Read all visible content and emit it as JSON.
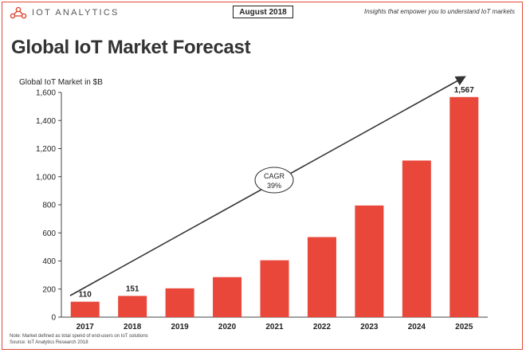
{
  "brand": {
    "name": "IOT ANALYTICS",
    "logo_icon": "network-nodes-icon"
  },
  "header": {
    "date_badge": "August 2018",
    "tagline": "Insights that empower you to understand IoT markets"
  },
  "title": "Global IoT Market Forecast",
  "notes": {
    "line1": "Note: Market defined as total spend of end-users on IoT solutions",
    "line2": "Source: IoT Analytics Research 2018"
  },
  "colors": {
    "bar": "#e8473a",
    "frame": "#e04a36"
  },
  "chart_data": {
    "type": "bar",
    "ylabel": "Global IoT Market in $B",
    "xlabel": "",
    "ylim": [
      0,
      1600
    ],
    "yticks": [
      "0",
      "200",
      "400",
      "600",
      "800",
      "1,000",
      "1,200",
      "1,400",
      "1,600"
    ],
    "categories": [
      "2017",
      "2018",
      "2019",
      "2020",
      "2021",
      "2022",
      "2023",
      "2024",
      "2025"
    ],
    "values": [
      110,
      151,
      205,
      285,
      405,
      570,
      795,
      1115,
      1567
    ],
    "data_labels": [
      "110",
      "151",
      "",
      "",
      "",
      "",
      "",
      "",
      "1,567"
    ],
    "annotation": {
      "title": "CAGR",
      "value": "39%"
    }
  }
}
